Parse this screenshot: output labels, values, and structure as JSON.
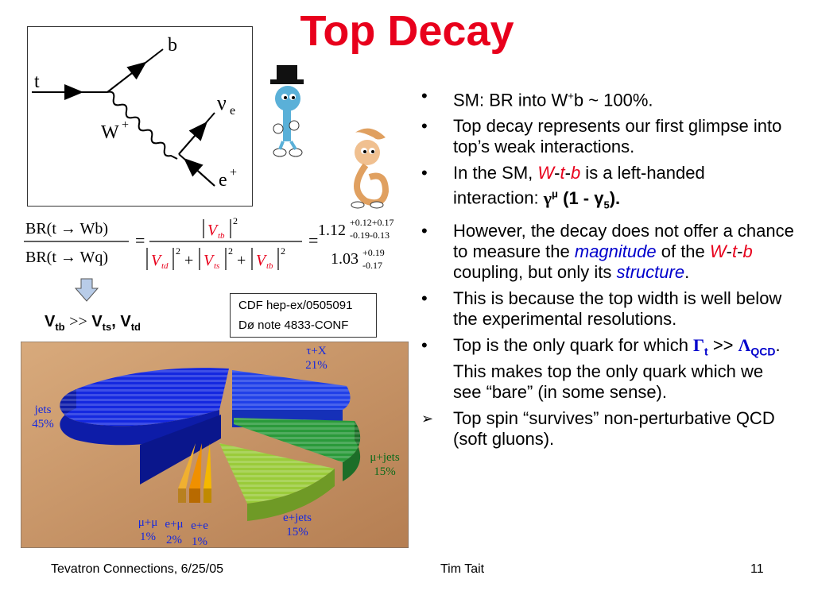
{
  "title": "Top Decay",
  "feynman": {
    "t": "t",
    "b": "b",
    "w": "W",
    "w_sup": "+",
    "nu": "ν",
    "nu_sub": "e",
    "e": "e",
    "e_sup": "+"
  },
  "formula": {
    "lhs_num": "BR(t → Wb)",
    "lhs_den": "BR(t → Wq)",
    "eq": "=",
    "vtb": "V",
    "vtb_sub": "tb",
    "vtd": "V",
    "vtd_sub": "td",
    "vts": "V",
    "vts_sub": "ts",
    "sq": "2",
    "plus": "+",
    "val1": "1.12",
    "val1_up": "+0.12+0.17",
    "val1_dn": "-0.19-0.13",
    "val2": "1.03",
    "val2_up": "+0.19",
    "val2_dn": "-0.17"
  },
  "conclusion": {
    "v": "V",
    "tb": "tb",
    "gg": ">>",
    "ts": "ts",
    "comma": ",",
    "td": "td"
  },
  "cdf_box": {
    "line1": "CDF hep-ex/0505091",
    "line2": "Dø note 4833-CONF"
  },
  "pie": {
    "colors": {
      "jets": "#1428e0",
      "tau": "#2040e8",
      "mu": "#2a9a3a",
      "e": "#9acb3a",
      "ee": "#f5b800",
      "emu": "#f09000",
      "mumu": "#f0b030",
      "bg": "#c9966a"
    },
    "labels": {
      "jets_name": "jets",
      "jets_pct": "45%",
      "tau_name": "τ+X",
      "tau_pct": "21%",
      "mu_name": "μ+jets",
      "mu_pct": "15%",
      "e_name": "e+jets",
      "e_pct": "15%",
      "mumu_name": "μ+μ",
      "mumu_pct": "1%",
      "emu_name": "e+μ",
      "emu_pct": "2%",
      "ee_name": "e+e",
      "ee_pct": "1%"
    }
  },
  "bullets": {
    "b1_a": "SM: BR into W",
    "b1_sup": "+",
    "b1_b": "b ~ 100%.",
    "b2": "Top decay represents our first glimpse into top’s weak interactions.",
    "b3_a": "In the SM, ",
    "b3_w": "W",
    "b3_d1": "-",
    "b3_t": "t",
    "b3_d2": "-",
    "b3_b": "b",
    "b3_c": " is a left-handed interaction: ",
    "b3_g": "γ",
    "b3_mu": "μ",
    "b3_p": " (1 - γ",
    "b3_5": "5",
    "b3_e": ").",
    "b4_a": "However, the decay does not offer a chance to measure the ",
    "b4_mag": "magnitude",
    "b4_b": " of the ",
    "b4_w": "W",
    "b4_d1": "-",
    "b4_t": "t",
    "b4_d2": "-",
    "b4_bb": "b",
    "b4_c": " coupling, but only its ",
    "b4_str": "structure",
    "b4_d": ".",
    "b5": "This is because the top width is well below the experimental resolutions.",
    "b6_a": "Top is the only quark for which ",
    "b6_g": "Γ",
    "b6_t": "t",
    "b6_gg": " >> ",
    "b6_l": "Λ",
    "b6_qcd": "QCD",
    "b6_b": ".  This makes top the only quark which we see “bare” (in some sense).",
    "b7": "Top spin “survives” non-perturbative QCD (soft gluons).",
    "bullet_mark": "•",
    "arrow_mark": "➢"
  },
  "footer": {
    "left": "Tevatron Connections, 6/25/05",
    "center": "Tim Tait",
    "right": "11"
  }
}
